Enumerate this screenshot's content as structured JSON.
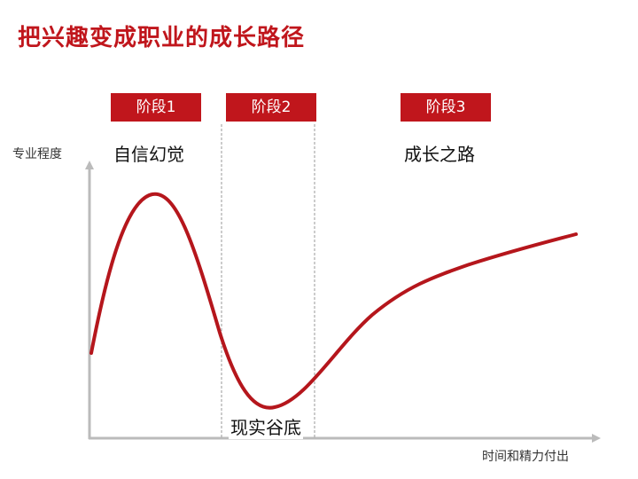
{
  "title": "把兴趣变成职业的成长路径",
  "stages": [
    "阶段1",
    "阶段2",
    "阶段3"
  ],
  "phases": {
    "confidence_illusion": "自信幻觉",
    "reality_valley": "现实谷底",
    "growth_road": "成长之路"
  },
  "axes": {
    "y_label": "专业程度",
    "x_label": "时间和精力付出"
  },
  "colors": {
    "accent": "#c0161c",
    "curve": "#b5161c",
    "axis": "#bbbbbb",
    "divider": "#999999"
  }
}
